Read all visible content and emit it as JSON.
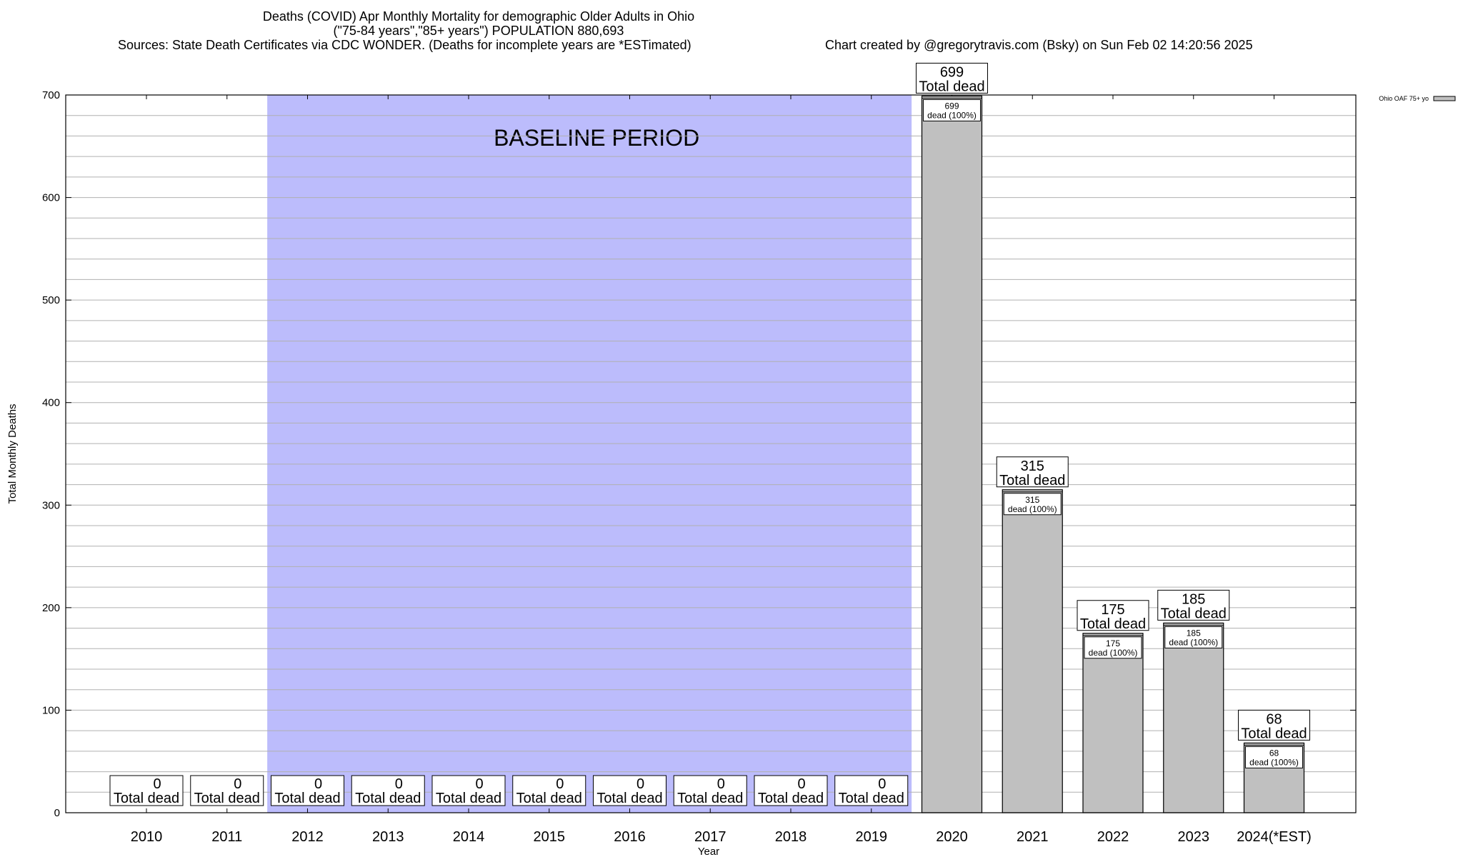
{
  "header": {
    "title_line1": "Deaths (COVID) Apr Monthly Mortality for demographic Older Adults in Ohio",
    "title_line2": "(\"75-84 years\",\"85+ years\") POPULATION 880,693",
    "sources": "Sources: State Death Certificates via CDC WONDER. (Deaths for incomplete years are *ESTimated)",
    "credit": "Chart created by @gregorytravis.com (Bsky) on Sun Feb 02 14:20:56 2025"
  },
  "chart_data": {
    "type": "bar",
    "categories": [
      "2010",
      "2011",
      "2012",
      "2013",
      "2014",
      "2015",
      "2016",
      "2017",
      "2018",
      "2019",
      "2020",
      "2021",
      "2022",
      "2023",
      "2024(*EST)"
    ],
    "series": [
      {
        "name": "Ohio OAF 75+ yo",
        "values": [
          0,
          0,
          0,
          0,
          0,
          0,
          0,
          0,
          0,
          0,
          699,
          315,
          175,
          185,
          68
        ]
      }
    ],
    "xlabel": "Year",
    "ylabel": "Total Monthly Deaths",
    "ylim": [
      0,
      700
    ],
    "yticks": [
      0,
      100,
      200,
      300,
      400,
      500,
      600,
      700
    ],
    "grid": true,
    "legend_position": "top-right",
    "total_label": "Total dead",
    "inner_label": "dead (100%)",
    "baseline": {
      "label": "BASELINE PERIOD",
      "from": "2012",
      "to": "2019",
      "color": "#bcbcfc"
    },
    "bar_color": "#c0c0c0"
  }
}
